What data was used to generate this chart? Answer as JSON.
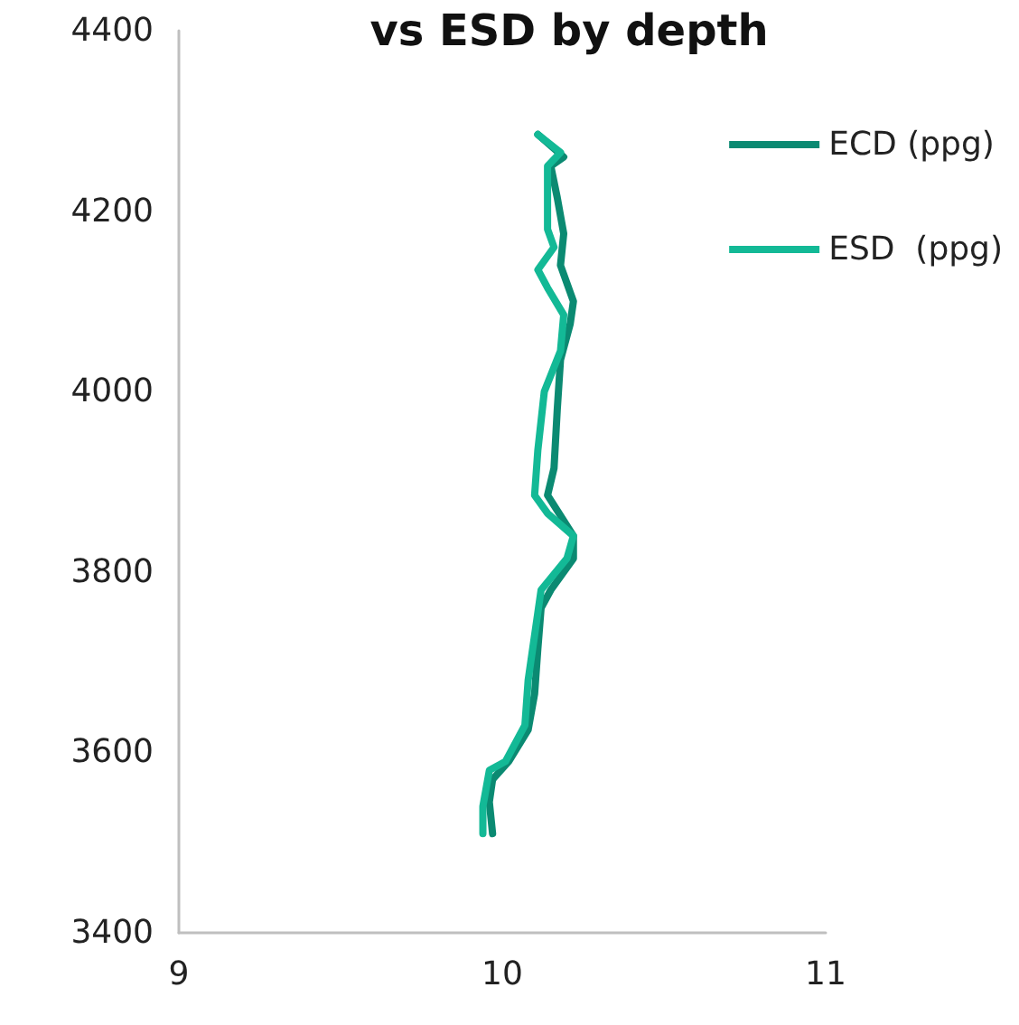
{
  "chart_data": {
    "type": "line",
    "title": "vs ESD by depth",
    "series": [
      {
        "name": "ECD (ppg)",
        "color": "#0b8a72",
        "x": [
          10.11,
          10.19,
          10.15,
          10.17,
          10.19,
          10.18,
          10.22,
          10.21,
          10.18,
          10.17,
          10.16,
          10.14,
          10.22,
          10.22,
          10.15,
          10.12,
          10.11,
          10.1,
          10.08,
          10.02,
          9.97,
          9.96,
          9.97
        ],
        "values": [
          4285,
          4260,
          4250,
          4215,
          4175,
          4140,
          4100,
          4075,
          4035,
          3980,
          3915,
          3885,
          3840,
          3815,
          3780,
          3760,
          3715,
          3665,
          3625,
          3590,
          3570,
          3545,
          3510
        ]
      },
      {
        "name": "ESD  (ppg)",
        "color": "#13b996",
        "x": [
          10.11,
          10.18,
          10.14,
          10.14,
          10.16,
          10.11,
          10.14,
          10.19,
          10.18,
          10.13,
          10.11,
          10.1,
          10.14,
          10.22,
          10.2,
          10.12,
          10.11,
          10.08,
          10.07,
          10.01,
          9.96,
          9.94,
          9.94
        ],
        "values": [
          4285,
          4265,
          4250,
          4180,
          4160,
          4135,
          4115,
          4085,
          4045,
          4000,
          3935,
          3885,
          3865,
          3840,
          3815,
          3780,
          3755,
          3680,
          3630,
          3590,
          3580,
          3540,
          3510
        ]
      }
    ],
    "xlim": [
      9,
      11
    ],
    "xticks": [
      9,
      10,
      11
    ],
    "ylim": [
      3400,
      4400
    ],
    "yticks": [
      3400,
      3600,
      3800,
      4000,
      4200,
      4400
    ],
    "legend": "top right",
    "marker": "none",
    "line_style": "solid"
  }
}
